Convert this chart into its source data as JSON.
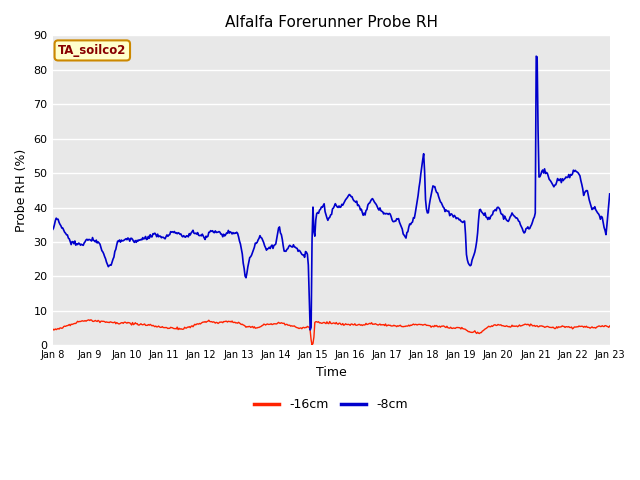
{
  "title": "Alfalfa Forerunner Probe RH",
  "xlabel": "Time",
  "ylabel": "Probe RH (%)",
  "ylim": [
    0,
    90
  ],
  "yticks": [
    0,
    10,
    20,
    30,
    40,
    50,
    60,
    70,
    80,
    90
  ],
  "fig_bg_color": "#ffffff",
  "plot_bg_color": "#e8e8e8",
  "grid_color": "#ffffff",
  "line1_color": "#ff2200",
  "line2_color": "#0000cc",
  "line1_label": "-16cm",
  "line2_label": "-8cm",
  "annotation_text": "TA_soilco2",
  "annotation_bg": "#ffffcc",
  "annotation_border": "#cc8800",
  "annotation_text_color": "#880000",
  "x_tick_labels": [
    "Jan 8",
    "Jan 9",
    "Jan 10",
    "Jan 11",
    "Jan 12",
    "Jan 13",
    "Jan 14",
    "Jan 15",
    "Jan 16",
    "Jan 17",
    "Jan 18",
    "Jan 19",
    "Jan 20",
    "Jan 21",
    "Jan 22",
    "Jan 23"
  ],
  "xlim": [
    0,
    15
  ],
  "num_ticks": 16,
  "blue_keypoints_x": [
    0.0,
    0.12,
    0.25,
    0.5,
    0.75,
    1.0,
    1.25,
    1.5,
    1.6,
    1.75,
    2.0,
    2.25,
    2.5,
    2.75,
    3.0,
    3.25,
    3.5,
    3.6,
    3.75,
    4.0,
    4.1,
    4.25,
    4.5,
    4.6,
    4.75,
    5.0,
    5.1,
    5.2,
    5.3,
    5.5,
    5.6,
    5.75,
    6.0,
    6.1,
    6.25,
    6.4,
    6.5,
    6.6,
    6.75,
    6.85,
    6.88,
    6.92,
    6.95,
    6.97,
    7.0,
    7.02,
    7.05,
    7.1,
    7.2,
    7.3,
    7.4,
    7.5,
    7.6,
    7.75,
    8.0,
    8.2,
    8.4,
    8.6,
    8.75,
    9.0,
    9.1,
    9.15,
    9.2,
    9.3,
    9.5,
    9.6,
    9.75,
    10.0,
    10.05,
    10.1,
    10.25,
    10.5,
    10.75,
    11.0,
    11.1,
    11.15,
    11.25,
    11.4,
    11.5,
    11.6,
    11.75,
    12.0,
    12.1,
    12.25,
    12.4,
    12.5,
    12.6,
    12.7,
    12.8,
    12.9,
    13.0,
    13.02,
    13.05,
    13.08,
    13.1,
    13.15,
    13.25,
    13.4,
    13.5,
    13.6,
    13.75,
    14.0,
    14.1,
    14.2,
    14.3,
    14.4,
    14.5,
    14.6,
    14.7,
    14.8,
    14.9,
    15.0
  ],
  "blue_keypoints_y": [
    33,
    37,
    34,
    30,
    29,
    31,
    30,
    23,
    24,
    30,
    31,
    30,
    31,
    32,
    31,
    33,
    32,
    31,
    33,
    32,
    31,
    33,
    33,
    32,
    33,
    32,
    27,
    19,
    25,
    30,
    32,
    28,
    29,
    35,
    27,
    29,
    29,
    28,
    26,
    27,
    26,
    10,
    0,
    10,
    46,
    36,
    30,
    38,
    39,
    41,
    36,
    38,
    41,
    40,
    44,
    41,
    38,
    43,
    40,
    38,
    38,
    36,
    36,
    37,
    31,
    35,
    37,
    56,
    40,
    38,
    47,
    40,
    38,
    36,
    36,
    25,
    23,
    28,
    40,
    38,
    37,
    40,
    38,
    36,
    38,
    37,
    35,
    33,
    34,
    35,
    38,
    84,
    84,
    55,
    48,
    50,
    51,
    48,
    46,
    48,
    48,
    50,
    51,
    49,
    44,
    45,
    40,
    40,
    38,
    37,
    32,
    44
  ],
  "red_keypoints_x": [
    0.0,
    0.2,
    0.5,
    0.75,
    1.0,
    1.2,
    1.5,
    1.75,
    2.0,
    2.2,
    2.5,
    2.75,
    3.0,
    3.2,
    3.5,
    3.75,
    4.0,
    4.2,
    4.5,
    4.6,
    4.75,
    5.0,
    5.2,
    5.5,
    5.6,
    5.75,
    6.0,
    6.2,
    6.5,
    6.6,
    6.75,
    6.9,
    6.93,
    6.95,
    6.97,
    7.0,
    7.03,
    7.05,
    7.1,
    7.2,
    7.5,
    7.75,
    8.0,
    8.25,
    8.5,
    8.75,
    9.0,
    9.25,
    9.5,
    9.75,
    10.0,
    10.2,
    10.5,
    10.75,
    11.0,
    11.2,
    11.5,
    11.75,
    12.0,
    12.25,
    12.5,
    12.75,
    13.0,
    13.25,
    13.5,
    13.75,
    14.0,
    14.25,
    14.5,
    14.75,
    15.0
  ],
  "red_keypoints_y": [
    4.5,
    5.0,
    6.0,
    7.0,
    7.2,
    7.0,
    6.8,
    6.5,
    6.5,
    6.2,
    6.0,
    5.5,
    5.2,
    5.0,
    4.8,
    5.5,
    6.5,
    7.0,
    6.5,
    6.8,
    7.0,
    6.5,
    5.5,
    5.0,
    5.5,
    6.0,
    6.2,
    6.5,
    5.5,
    5.0,
    5.0,
    5.5,
    5.0,
    3.0,
    0.5,
    0.2,
    0.5,
    6.5,
    7.0,
    6.5,
    6.5,
    6.2,
    6.0,
    5.8,
    6.2,
    6.0,
    5.8,
    5.5,
    5.5,
    6.0,
    6.0,
    5.5,
    5.5,
    5.0,
    5.0,
    4.0,
    3.5,
    5.5,
    6.0,
    5.5,
    5.5,
    6.0,
    5.5,
    5.5,
    5.0,
    5.5,
    5.0,
    5.5,
    5.0,
    5.5,
    5.5
  ]
}
